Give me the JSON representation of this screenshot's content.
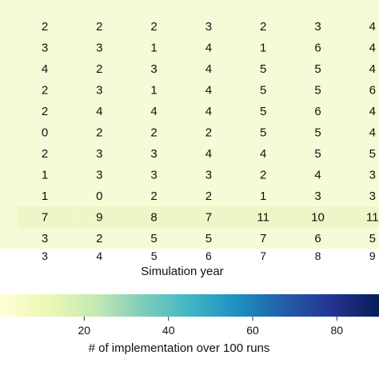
{
  "chart_data": {
    "type": "heatmap",
    "columns": [
      3,
      4,
      5,
      6,
      7,
      8,
      9
    ],
    "rows": [
      [
        2,
        2,
        2,
        3,
        2,
        3,
        4
      ],
      [
        3,
        3,
        1,
        4,
        1,
        6,
        4
      ],
      [
        4,
        2,
        3,
        4,
        5,
        5,
        4
      ],
      [
        2,
        3,
        1,
        4,
        5,
        5,
        6
      ],
      [
        2,
        4,
        4,
        4,
        5,
        6,
        4
      ],
      [
        0,
        2,
        2,
        2,
        5,
        5,
        4
      ],
      [
        2,
        3,
        3,
        4,
        4,
        5,
        5
      ],
      [
        1,
        3,
        3,
        3,
        2,
        4,
        3
      ],
      [
        1,
        0,
        2,
        2,
        1,
        3,
        3
      ],
      [
        7,
        9,
        8,
        7,
        11,
        10,
        11
      ],
      [
        3,
        2,
        5,
        5,
        7,
        6,
        5
      ]
    ],
    "xlabel": "Simulation year",
    "colorbar": {
      "label": "# of implementation over 100 runs",
      "ticks": [
        20,
        40,
        60,
        80
      ],
      "range": [
        0,
        90
      ],
      "colormap": [
        "#ffffd9",
        "#edf8b1",
        "#c7e9b4",
        "#7fcdbb",
        "#41b6c4",
        "#1d91c0",
        "#225ea8",
        "#253494",
        "#081d58"
      ]
    },
    "cell_colors": {
      "base": "#f7fad6",
      "row_highlight": "#eff5c6"
    }
  }
}
